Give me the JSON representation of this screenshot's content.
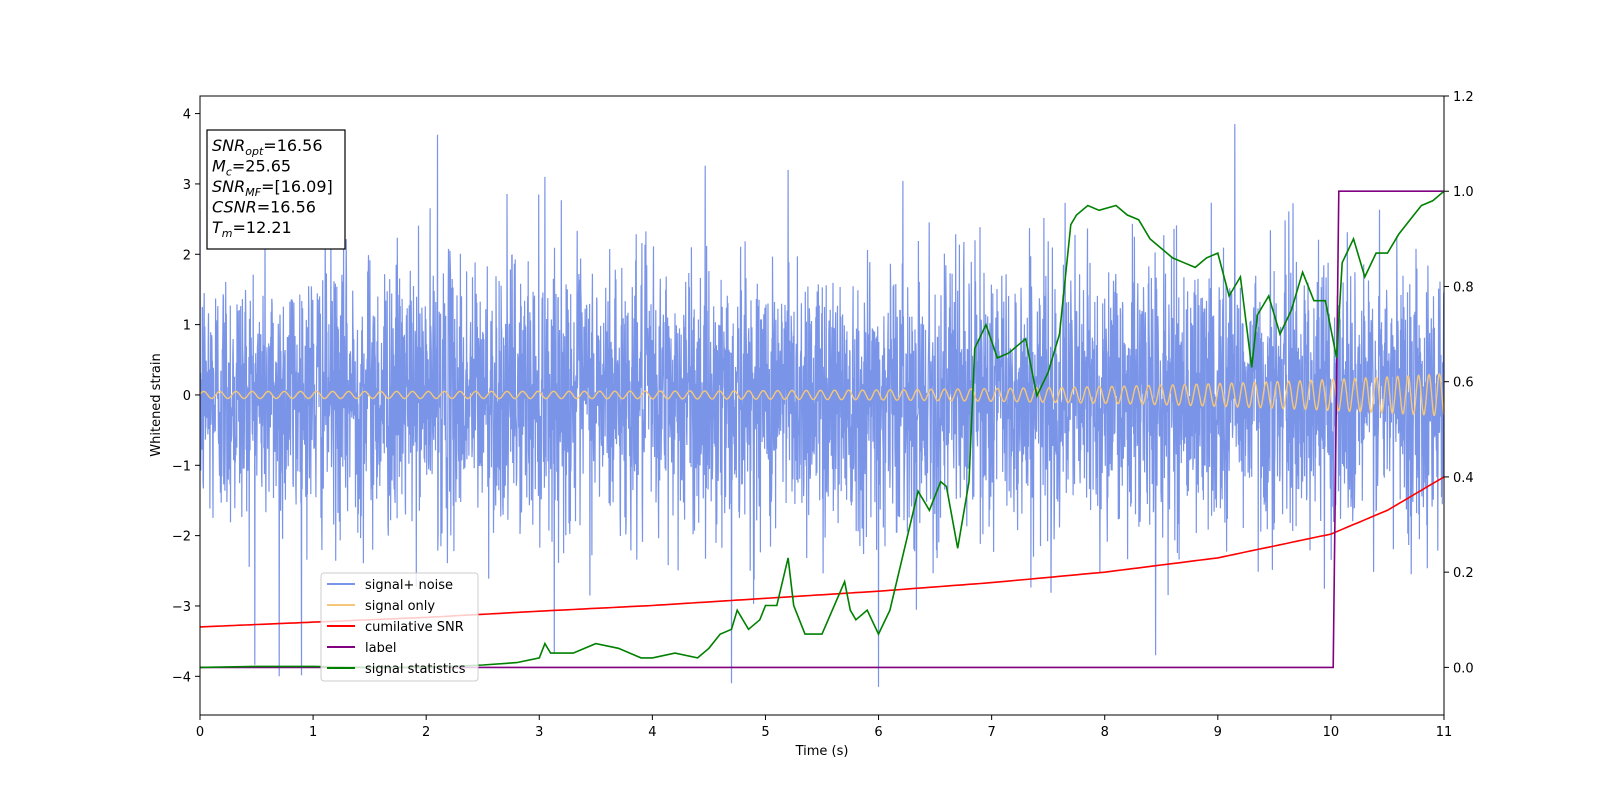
{
  "chart_data": {
    "type": "line",
    "xlabel": "Time (s)",
    "ylabel": "Whitened strain",
    "xlim": [
      0,
      11
    ],
    "ylim": [
      -4.55,
      4.25
    ],
    "y2lim": [
      -0.1,
      1.2
    ],
    "grid": false,
    "legend_position": "lower-left",
    "x_ticks": [
      "0",
      "1",
      "2",
      "3",
      "4",
      "5",
      "6",
      "7",
      "8",
      "9",
      "10",
      "11"
    ],
    "y_ticks": [
      "−4",
      "−3",
      "−2",
      "−1",
      "0",
      "1",
      "2",
      "3",
      "4"
    ],
    "y2_ticks": [
      "0.0",
      "0.2",
      "0.4",
      "0.6",
      "0.8",
      "1.0",
      "1.2"
    ],
    "annotation": {
      "lines": [
        {
          "sym": "SNR",
          "sub": "opt",
          "val": "=16.56"
        },
        {
          "sym": "M",
          "sub": "c",
          "val": "=25.65"
        },
        {
          "sym": "SNR",
          "sub": "MF",
          "val": "=[16.09]"
        },
        {
          "sym": "CSNR",
          "sub": "",
          "val": "=16.56"
        },
        {
          "sym": "T",
          "sub": "m",
          "val": "=12.21"
        }
      ]
    },
    "series": [
      {
        "name": "signal+ noise",
        "axis": "left",
        "color": "#7a94e8",
        "style": "noise",
        "std": 0.95,
        "outliers": [
          [
            0.7,
            -4.0
          ],
          [
            2.1,
            3.7
          ],
          [
            4.7,
            -4.1
          ],
          [
            6.0,
            -4.15
          ],
          [
            9.15,
            3.85
          ],
          [
            8.45,
            -3.7
          ],
          [
            5.2,
            3.2
          ],
          [
            3.05,
            3.1
          ]
        ]
      },
      {
        "name": "signal only",
        "axis": "left",
        "color": "#f5c77a",
        "style": "chirp",
        "amplitude_start": 0.05,
        "amplitude_end": 0.3,
        "cycles_per_second_start": 7,
        "cycles_per_second_end": 11
      },
      {
        "name": "cumilative SNR",
        "axis": "right",
        "color": "#ff0000",
        "x": [
          0,
          1,
          2,
          3,
          4,
          5,
          6,
          7,
          8,
          9,
          10,
          10.5,
          11
        ],
        "y": [
          0.085,
          0.095,
          0.105,
          0.118,
          0.13,
          0.145,
          0.16,
          0.178,
          0.2,
          0.23,
          0.28,
          0.33,
          0.4
        ]
      },
      {
        "name": "label",
        "axis": "right",
        "color": "#800080",
        "x": [
          0,
          10.02,
          10.07,
          11
        ],
        "y": [
          0,
          0,
          1,
          1
        ]
      },
      {
        "name": "signal statistics",
        "axis": "right",
        "color": "#008000",
        "x": [
          0,
          0.5,
          1,
          1.5,
          2,
          2.5,
          2.8,
          3.0,
          3.05,
          3.1,
          3.3,
          3.5,
          3.7,
          3.9,
          4.0,
          4.2,
          4.4,
          4.5,
          4.6,
          4.7,
          4.75,
          4.85,
          4.95,
          5.0,
          5.1,
          5.2,
          5.25,
          5.35,
          5.5,
          5.7,
          5.75,
          5.8,
          5.9,
          6.0,
          6.1,
          6.2,
          6.35,
          6.45,
          6.55,
          6.6,
          6.7,
          6.8,
          6.85,
          6.95,
          7.05,
          7.15,
          7.3,
          7.4,
          7.5,
          7.6,
          7.7,
          7.75,
          7.85,
          7.95,
          8.1,
          8.2,
          8.3,
          8.4,
          8.5,
          8.6,
          8.7,
          8.8,
          8.9,
          9.0,
          9.1,
          9.2,
          9.3,
          9.35,
          9.45,
          9.55,
          9.65,
          9.75,
          9.85,
          9.95,
          10.05,
          10.1,
          10.2,
          10.3,
          10.4,
          10.5,
          10.6,
          10.7,
          10.8,
          10.9,
          11.0
        ],
        "y": [
          0.0,
          0.002,
          0.002,
          0.0,
          0.0,
          0.005,
          0.01,
          0.02,
          0.05,
          0.03,
          0.03,
          0.05,
          0.04,
          0.02,
          0.02,
          0.03,
          0.02,
          0.04,
          0.07,
          0.08,
          0.12,
          0.08,
          0.1,
          0.13,
          0.13,
          0.23,
          0.13,
          0.07,
          0.07,
          0.18,
          0.12,
          0.1,
          0.12,
          0.07,
          0.12,
          0.22,
          0.37,
          0.33,
          0.39,
          0.38,
          0.25,
          0.39,
          0.67,
          0.72,
          0.65,
          0.66,
          0.69,
          0.57,
          0.62,
          0.7,
          0.93,
          0.95,
          0.97,
          0.96,
          0.97,
          0.95,
          0.94,
          0.9,
          0.88,
          0.86,
          0.85,
          0.84,
          0.86,
          0.87,
          0.78,
          0.82,
          0.63,
          0.74,
          0.78,
          0.7,
          0.75,
          0.83,
          0.77,
          0.77,
          0.65,
          0.85,
          0.9,
          0.82,
          0.87,
          0.87,
          0.91,
          0.94,
          0.97,
          0.98,
          1.0
        ]
      }
    ]
  }
}
